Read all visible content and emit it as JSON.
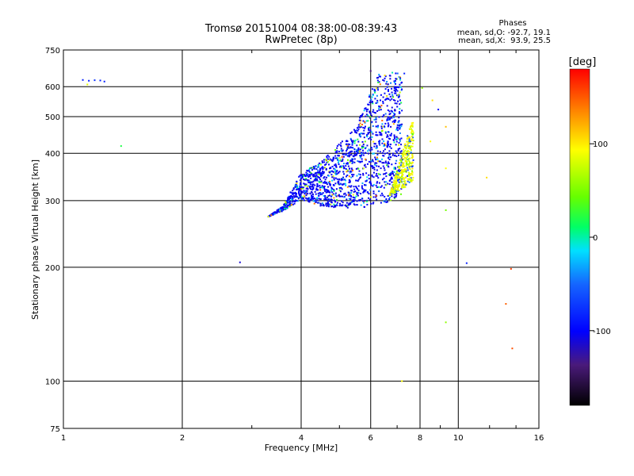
{
  "chart_data": {
    "type": "scatter",
    "title_line1": "Tromsø 20151004 08:38:00-08:39:43",
    "title_line2": "RwPretec (8p)",
    "xlabel": "Frequency [MHz]",
    "ylabel": "Stationary phase Virtual Height [km]",
    "x_scale": "log",
    "y_scale": "log",
    "xlim": [
      1,
      16
    ],
    "ylim": [
      75,
      750
    ],
    "x_ticks": [
      1,
      2,
      4,
      6,
      8,
      10,
      16
    ],
    "x_tick_labels": [
      "1",
      "2",
      "4",
      "6",
      "8",
      "10",
      "16"
    ],
    "y_ticks": [
      75,
      100,
      200,
      300,
      400,
      500,
      600,
      750
    ],
    "y_tick_labels": [
      "75",
      "100",
      "200",
      "300",
      "400",
      "500",
      "600",
      "750"
    ],
    "grid": true,
    "stats": {
      "heading": "Phases",
      "line_o": "mean, sd,O: -92.7, 19.1",
      "line_x": "mean, sd,X:  93.9, 25.5"
    },
    "colorbar": {
      "label": "[deg]",
      "min": -180,
      "max": 180,
      "ticks": [
        100,
        0,
        -100
      ],
      "tick_labels": [
        "100",
        "0",
        "-100"
      ]
    },
    "points": [
      [
        1.12,
        625,
        -100
      ],
      [
        1.16,
        622,
        -100
      ],
      [
        1.2,
        624,
        -95
      ],
      [
        1.24,
        623,
        -100
      ],
      [
        1.27,
        619,
        -100
      ],
      [
        1.15,
        608,
        90
      ],
      [
        1.4,
        418,
        20
      ],
      [
        2.8,
        206,
        -120
      ],
      [
        10.5,
        205,
        -100
      ],
      [
        13.6,
        198,
        160
      ],
      [
        13.2,
        160,
        150
      ],
      [
        13.7,
        122,
        155
      ],
      [
        9.3,
        143,
        60
      ],
      [
        7.2,
        100,
        100
      ],
      [
        9.3,
        283,
        50
      ],
      [
        9.3,
        365,
        100
      ],
      [
        9.3,
        470,
        120
      ],
      [
        8.1,
        595,
        60
      ],
      [
        8.6,
        552,
        110
      ],
      [
        8.9,
        522,
        -110
      ],
      [
        11.8,
        345,
        110
      ],
      [
        8.5,
        430,
        100
      ],
      [
        6.0,
        660,
        -140
      ],
      [
        7.3,
        650,
        -100
      ]
    ],
    "main_cloud": {
      "o_mode": {
        "lower_edge": [
          [
            3.3,
            272
          ],
          [
            3.6,
            282
          ],
          [
            4.0,
            302
          ],
          [
            4.5,
            290
          ],
          [
            5.0,
            287
          ],
          [
            5.8,
            288
          ],
          [
            6.3,
            292
          ],
          [
            6.8,
            300
          ],
          [
            7.2,
            310
          ]
        ],
        "upper_edge": [
          [
            3.3,
            272
          ],
          [
            3.6,
            290
          ],
          [
            4.0,
            355
          ],
          [
            4.5,
            380
          ],
          [
            5.0,
            425
          ],
          [
            5.5,
            468
          ],
          [
            5.9,
            555
          ],
          [
            6.3,
            650
          ],
          [
            6.8,
            655
          ],
          [
            7.4,
            645
          ],
          [
            7.6,
            560
          ],
          [
            7.2,
            470
          ],
          [
            6.9,
            420
          ],
          [
            7.1,
            330
          ],
          [
            7.2,
            310
          ]
        ]
      },
      "x_mode": {
        "lower_edge": [
          [
            6.7,
            310
          ],
          [
            7.2,
            320
          ],
          [
            7.7,
            340
          ]
        ],
        "upper_edge": [
          [
            6.7,
            310
          ],
          [
            7.0,
            360
          ],
          [
            7.4,
            440
          ],
          [
            7.8,
            515
          ],
          [
            8.1,
            500
          ],
          [
            8.2,
            420
          ],
          [
            8.0,
            360
          ],
          [
            7.7,
            340
          ]
        ]
      }
    }
  }
}
